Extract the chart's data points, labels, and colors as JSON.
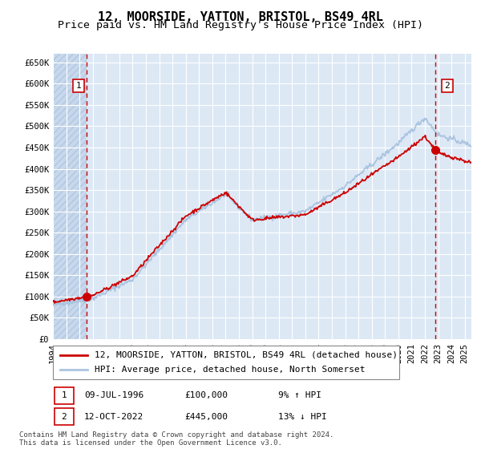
{
  "title": "12, MOORSIDE, YATTON, BRISTOL, BS49 4RL",
  "subtitle": "Price paid vs. HM Land Registry's House Price Index (HPI)",
  "ylabel_ticks": [
    "£0",
    "£50K",
    "£100K",
    "£150K",
    "£200K",
    "£250K",
    "£300K",
    "£350K",
    "£400K",
    "£450K",
    "£500K",
    "£550K",
    "£600K",
    "£650K"
  ],
  "ytick_values": [
    0,
    50000,
    100000,
    150000,
    200000,
    250000,
    300000,
    350000,
    400000,
    450000,
    500000,
    550000,
    600000,
    650000
  ],
  "ylim": [
    0,
    670000
  ],
  "xlim_start": 1994.0,
  "xlim_end": 2025.5,
  "sale1_date": 1996.52,
  "sale1_price": 100000,
  "sale2_date": 2022.78,
  "sale2_price": 445000,
  "legend_line1": "12, MOORSIDE, YATTON, BRISTOL, BS49 4RL (detached house)",
  "legend_line2": "HPI: Average price, detached house, North Somerset",
  "annotation1_date": "09-JUL-1996",
  "annotation1_price": "£100,000",
  "annotation1_hpi": "9% ↑ HPI",
  "annotation2_date": "12-OCT-2022",
  "annotation2_price": "£445,000",
  "annotation2_hpi": "13% ↓ HPI",
  "copyright_text": "Contains HM Land Registry data © Crown copyright and database right 2024.\nThis data is licensed under the Open Government Licence v3.0.",
  "hpi_line_color": "#aac4e0",
  "sale_line_color": "#cc0000",
  "sale_dot_color": "#cc0000",
  "dashed_line_color": "#cc0000",
  "plot_bg_color": "#dde8f5",
  "hatch_bg_color": "#c8d8ec",
  "grid_color": "#ffffff",
  "box_color": "#cc0000",
  "title_fontsize": 11,
  "subtitle_fontsize": 9.5,
  "tick_fontsize": 7.5,
  "legend_fontsize": 8,
  "annotation_fontsize": 8,
  "copyright_fontsize": 6.5
}
